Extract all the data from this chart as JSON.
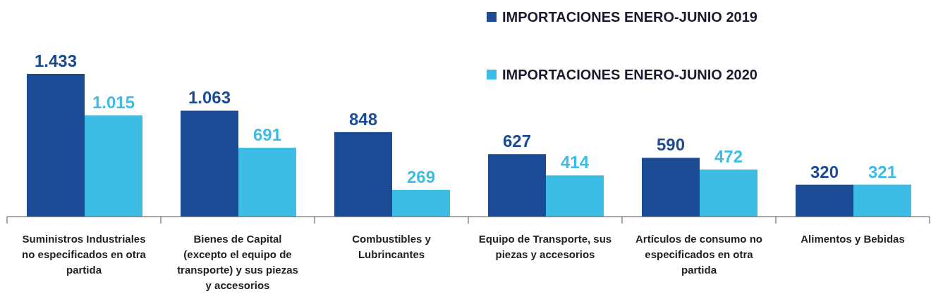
{
  "chart_data": {
    "type": "bar",
    "categories": [
      "Suministros Industriales no especificados en otra partida",
      "Bienes de Capital (excepto el equipo de transporte) y sus piezas y accesorios",
      "Combustibles y Lubrincantes",
      "Equipo de Transporte, sus piezas y accesorios",
      "Artículos de consumo no especificados en otra partida",
      "Alimentos y Bebidas"
    ],
    "series": [
      {
        "name": "IMPORTACIONES ENERO-JUNIO 2019",
        "color": "#1c4b96",
        "values": [
          1433,
          1063,
          848,
          627,
          590,
          320
        ],
        "value_labels": [
          "1.433",
          "1.063",
          "848",
          "627",
          "590",
          "320"
        ]
      },
      {
        "name": "IMPORTACIONES ENERO-JUNIO 2020",
        "color": "#3dbde6",
        "values": [
          1015,
          691,
          269,
          414,
          472,
          321
        ],
        "value_labels": [
          "1.015",
          "691",
          "269",
          "414",
          "472",
          "321"
        ]
      }
    ],
    "legend": "top right"
  }
}
